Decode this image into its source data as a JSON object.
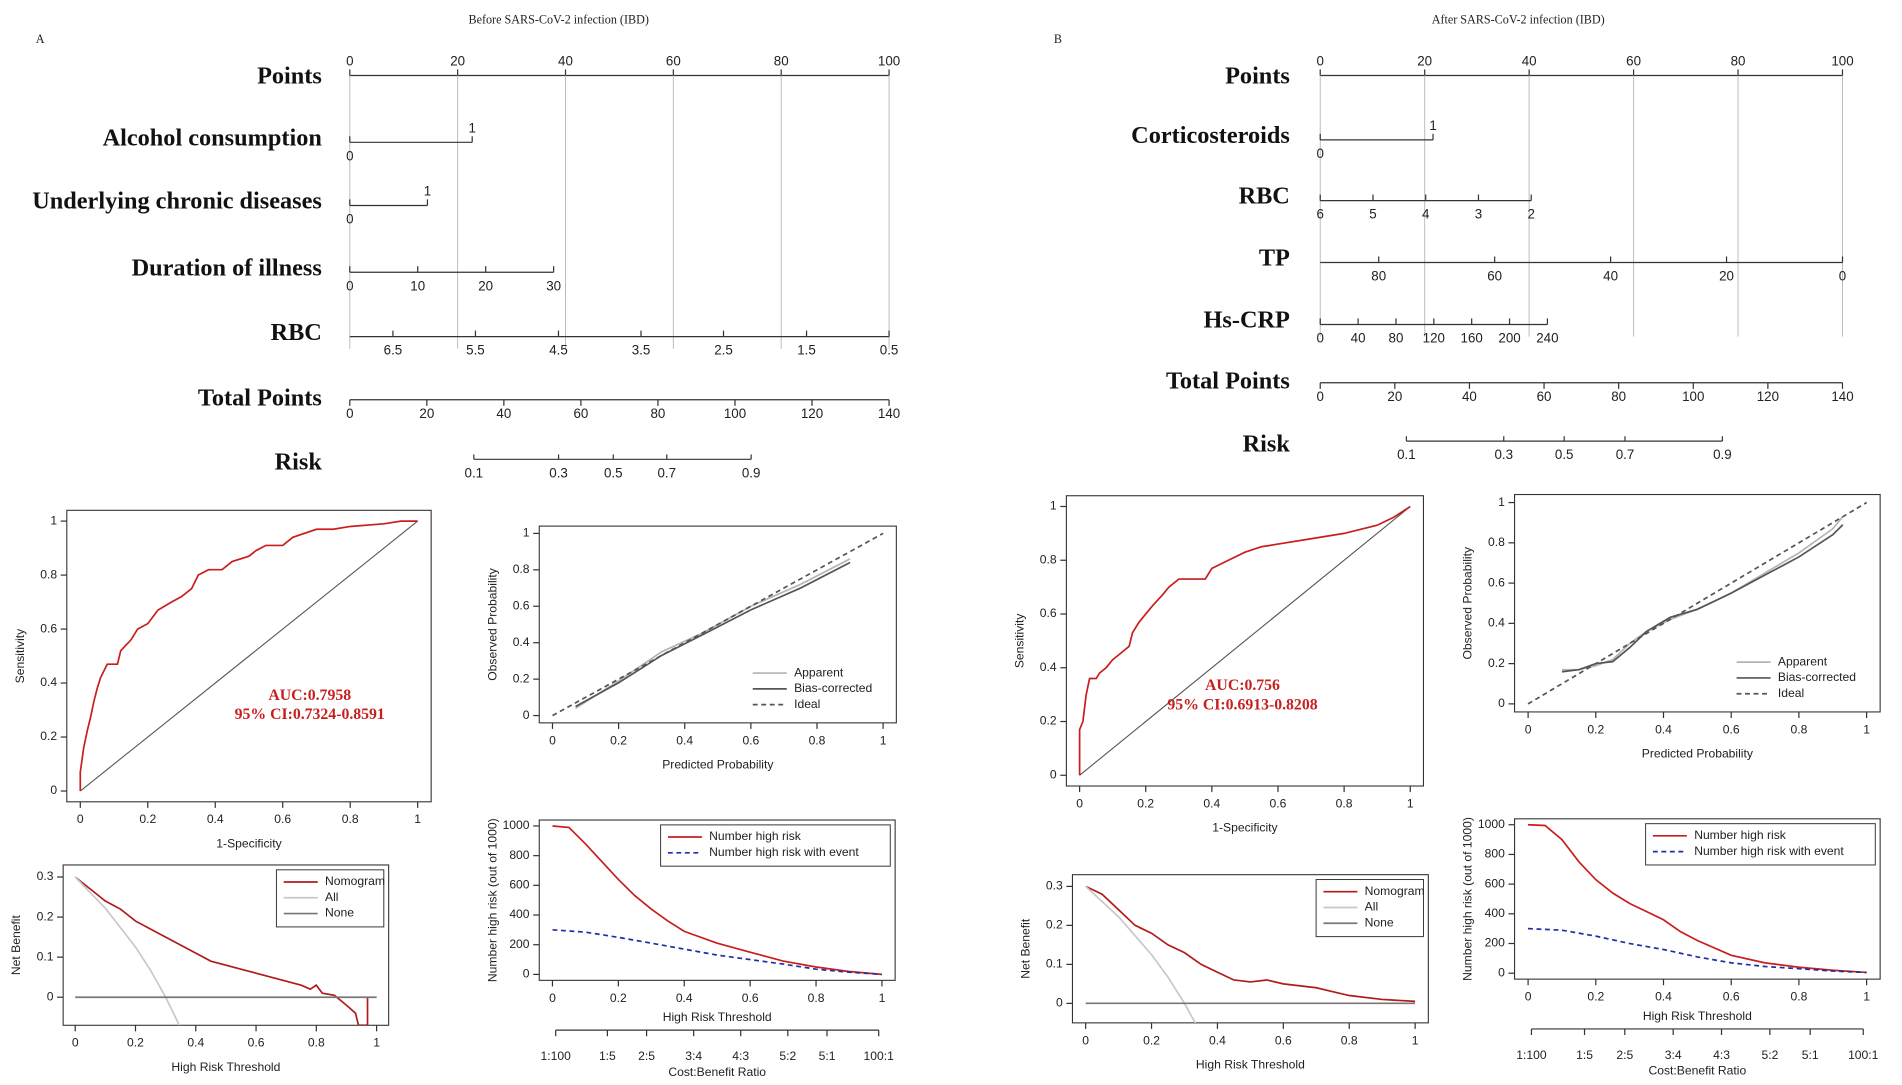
{
  "chart_data": [
    {
      "type": "nomogram",
      "panel": "A",
      "title": "Before SARS-CoV-2 infection (IBD)",
      "points": {
        "label": "Points",
        "xlim": [
          0,
          100
        ],
        "xticks": [
          0,
          20,
          40,
          60,
          80,
          100
        ]
      },
      "variables": [
        {
          "name": "Alcohol consumption",
          "levels": [
            0,
            1
          ],
          "points": [
            0,
            22.7
          ]
        },
        {
          "name": "Underlying chronic diseases",
          "levels": [
            0,
            1
          ],
          "points": [
            0,
            14.4
          ]
        },
        {
          "name": "Duration of illness",
          "levels": [
            0,
            10,
            20,
            30
          ],
          "points": [
            0,
            12.6,
            25.2,
            37.8
          ]
        },
        {
          "name": "RBC",
          "levels": [
            6.5,
            5.5,
            4.5,
            3.5,
            2.5,
            1.5,
            0.5
          ],
          "points": [
            8,
            23.3,
            38.7,
            54,
            69.3,
            84.7,
            100
          ],
          "axis_points": [
            0,
            100
          ]
        }
      ],
      "total_points": {
        "label": "Total Points",
        "xlim": [
          0,
          140
        ],
        "xticks": [
          0,
          20,
          40,
          60,
          80,
          100,
          120,
          140
        ]
      },
      "risk": {
        "label": "Risk",
        "values": [
          0.1,
          0.3,
          0.5,
          0.7,
          0.9
        ],
        "points": [
          32.2,
          54.2,
          68.4,
          82.3,
          104.2
        ]
      }
    },
    {
      "type": "line",
      "xlabel": "1-Specificity",
      "ylabel": "Sensitivity",
      "xlim": [
        -0.04,
        1.04
      ],
      "ylim": [
        -0.04,
        1.04
      ],
      "xticks": [
        0,
        0.2,
        0.4,
        0.6,
        0.8,
        1
      ],
      "yticks": [
        0,
        0.2,
        0.4,
        0.6,
        0.8,
        1
      ],
      "diagonal": true,
      "annotations": [
        "AUC:0.7958",
        "95% CI:0.7324-0.8591"
      ],
      "annotation_color": "#c81e1e",
      "series": [
        {
          "color": "#c81e1e",
          "x": [
            0,
            0,
            0.01,
            0.02,
            0.03,
            0.04,
            0.05,
            0.06,
            0.08,
            0.11,
            0.12,
            0.15,
            0.17,
            0.2,
            0.23,
            0.27,
            0.3,
            0.33,
            0.35,
            0.38,
            0.42,
            0.45,
            0.5,
            0.52,
            0.55,
            0.6,
            0.63,
            0.7,
            0.75,
            0.8,
            0.9,
            0.95,
            1
          ],
          "values": [
            0,
            0.07,
            0.16,
            0.22,
            0.27,
            0.33,
            0.38,
            0.42,
            0.47,
            0.47,
            0.52,
            0.56,
            0.6,
            0.62,
            0.67,
            0.7,
            0.72,
            0.75,
            0.8,
            0.82,
            0.82,
            0.85,
            0.87,
            0.89,
            0.91,
            0.91,
            0.94,
            0.97,
            0.97,
            0.98,
            0.99,
            1,
            1
          ]
        }
      ]
    },
    {
      "type": "line",
      "xlabel": "Predicted Probability",
      "ylabel": "Observed Probability",
      "xlim": [
        -0.04,
        1.04
      ],
      "ylim": [
        -0.04,
        1.04
      ],
      "xticks": [
        0,
        0.2,
        0.4,
        0.6,
        0.8,
        1
      ],
      "yticks": [
        0,
        0.2,
        0.4,
        0.6,
        0.8,
        1
      ],
      "legend": "bottomright",
      "legend_frame": false,
      "series": [
        {
          "name": "Apparent",
          "color": "#b4b4b4",
          "x": [
            0.07,
            0.2,
            0.33,
            0.45,
            0.6,
            0.75,
            0.9
          ],
          "values": [
            0.04,
            0.19,
            0.35,
            0.45,
            0.6,
            0.72,
            0.86
          ]
        },
        {
          "name": "Bias-corrected",
          "color": "#555555",
          "x": [
            0.07,
            0.2,
            0.33,
            0.45,
            0.6,
            0.75,
            0.9
          ],
          "values": [
            0.05,
            0.18,
            0.33,
            0.44,
            0.58,
            0.7,
            0.84
          ]
        },
        {
          "name": "Ideal",
          "color": "#555555",
          "dash": true,
          "x": [
            0,
            1
          ],
          "values": [
            0,
            1
          ]
        }
      ]
    },
    {
      "type": "line",
      "xlabel": "High Risk Threshold",
      "ylabel": "Net Benefit",
      "xlim": [
        -0.04,
        1.04
      ],
      "ylim": [
        -0.07,
        0.33
      ],
      "xticks": [
        0,
        0.2,
        0.4,
        0.6,
        0.8,
        1
      ],
      "yticks": [
        0,
        0.1,
        0.2,
        0.3
      ],
      "legend": "topright",
      "legend_frame": true,
      "series": [
        {
          "name": "Nomogram",
          "color": "#b01c1c",
          "x": [
            0,
            0.05,
            0.1,
            0.15,
            0.2,
            0.25,
            0.3,
            0.35,
            0.4,
            0.45,
            0.5,
            0.55,
            0.6,
            0.65,
            0.7,
            0.75,
            0.78,
            0.8,
            0.82,
            0.86,
            0.9,
            0.93,
            0.94,
            0.97,
            0.97
          ],
          "values": [
            0.3,
            0.27,
            0.24,
            0.22,
            0.19,
            0.17,
            0.15,
            0.13,
            0.11,
            0.09,
            0.08,
            0.07,
            0.06,
            0.05,
            0.04,
            0.03,
            0.02,
            0.03,
            0.01,
            0.005,
            -0.02,
            -0.04,
            -0.07,
            -0.07,
            0
          ]
        },
        {
          "name": "All",
          "color": "#c8c8c8",
          "x": [
            0,
            0.1,
            0.2,
            0.25,
            0.3,
            0.35
          ],
          "values": [
            0.3,
            0.222,
            0.125,
            0.067,
            0,
            -0.077
          ]
        },
        {
          "name": "None",
          "color": "#777777",
          "x": [
            0,
            1
          ],
          "values": [
            0,
            0
          ]
        }
      ]
    },
    {
      "type": "line",
      "xlabel": "High Risk Threshold",
      "ylabel": "Number high risk (out of 1000)",
      "xlim": [
        -0.04,
        1.04
      ],
      "ylim": [
        -40,
        1040
      ],
      "xticks": [
        0,
        0.2,
        0.4,
        0.6,
        0.8,
        1
      ],
      "yticks": [
        0,
        200,
        400,
        600,
        800,
        1000
      ],
      "x2label": "Cost:Benefit Ratio",
      "x2ticks": [
        {
          "value": 0.0099,
          "label": "1:100"
        },
        {
          "value": 0.1667,
          "label": "1:5"
        },
        {
          "value": 0.2857,
          "label": "2:5"
        },
        {
          "value": 0.4286,
          "label": "3:4"
        },
        {
          "value": 0.5714,
          "label": "4:3"
        },
        {
          "value": 0.7143,
          "label": "5:2"
        },
        {
          "value": 0.8333,
          "label": "5:1"
        },
        {
          "value": 0.9901,
          "label": "100:1"
        }
      ],
      "legend": "topright",
      "legend_frame": true,
      "series": [
        {
          "name": "Number high risk",
          "color": "#c81e1e",
          "x": [
            0,
            0.05,
            0.1,
            0.15,
            0.2,
            0.25,
            0.3,
            0.35,
            0.4,
            0.5,
            0.6,
            0.7,
            0.8,
            0.9,
            1
          ],
          "values": [
            1000,
            990,
            880,
            760,
            640,
            530,
            440,
            360,
            290,
            210,
            150,
            90,
            50,
            20,
            0
          ]
        },
        {
          "name": "Number high risk with event",
          "color": "#1f2fa8",
          "dash": true,
          "x": [
            0,
            0.1,
            0.2,
            0.3,
            0.4,
            0.5,
            0.6,
            0.7,
            0.8,
            0.9,
            1
          ],
          "values": [
            300,
            285,
            250,
            210,
            170,
            130,
            100,
            70,
            35,
            15,
            0
          ]
        }
      ]
    },
    {
      "type": "nomogram",
      "panel": "B",
      "title": "After SARS-CoV-2 infection (IBD)",
      "points": {
        "label": "Points",
        "xlim": [
          0,
          100
        ],
        "xticks": [
          0,
          20,
          40,
          60,
          80,
          100
        ]
      },
      "variables": [
        {
          "name": "Corticosteroids",
          "levels": [
            0,
            1
          ],
          "points": [
            0,
            21.6
          ]
        },
        {
          "name": "RBC",
          "levels": [
            6,
            5,
            4,
            3,
            2
          ],
          "points": [
            0,
            10.1,
            20.2,
            30.3,
            40.4
          ]
        },
        {
          "name": "TP",
          "levels": [
            80,
            60,
            40,
            20,
            0
          ],
          "points": [
            11.2,
            33.4,
            55.6,
            77.8,
            100
          ],
          "axis_points": [
            0,
            100
          ]
        },
        {
          "name": "Hs-CRP",
          "levels": [
            0,
            40,
            80,
            120,
            160,
            200,
            240
          ],
          "points": [
            0,
            7.25,
            14.5,
            21.75,
            29,
            36.25,
            43.5
          ]
        }
      ],
      "total_points": {
        "label": "Total Points",
        "xlim": [
          0,
          140
        ],
        "xticks": [
          0,
          20,
          40,
          60,
          80,
          100,
          120,
          140
        ]
      },
      "risk": {
        "label": "Risk",
        "values": [
          0.1,
          0.3,
          0.5,
          0.7,
          0.9
        ],
        "points": [
          23.1,
          49.2,
          65.4,
          81.7,
          107.8
        ]
      }
    },
    {
      "type": "line",
      "xlabel": "1-Specificity",
      "ylabel": "Sensitivity",
      "xlim": [
        -0.04,
        1.04
      ],
      "ylim": [
        -0.04,
        1.04
      ],
      "xticks": [
        0,
        0.2,
        0.4,
        0.6,
        0.8,
        1
      ],
      "yticks": [
        0,
        0.2,
        0.4,
        0.6,
        0.8,
        1
      ],
      "diagonal": true,
      "annotations": [
        "AUC:0.756",
        "95% CI:0.6913-0.8208"
      ],
      "annotation_color": "#c81e1e",
      "series": [
        {
          "color": "#c81e1e",
          "x": [
            0,
            0,
            0.01,
            0.02,
            0.03,
            0.05,
            0.06,
            0.08,
            0.1,
            0.12,
            0.15,
            0.16,
            0.18,
            0.2,
            0.22,
            0.25,
            0.27,
            0.3,
            0.38,
            0.4,
            0.45,
            0.5,
            0.55,
            0.6,
            0.7,
            0.8,
            0.9,
            0.95,
            1
          ],
          "values": [
            0,
            0.17,
            0.2,
            0.3,
            0.36,
            0.36,
            0.38,
            0.4,
            0.43,
            0.45,
            0.48,
            0.53,
            0.57,
            0.6,
            0.63,
            0.67,
            0.7,
            0.73,
            0.73,
            0.77,
            0.8,
            0.83,
            0.85,
            0.86,
            0.88,
            0.9,
            0.93,
            0.96,
            1
          ]
        }
      ]
    },
    {
      "type": "line",
      "xlabel": "Predicted Probability",
      "ylabel": "Observed Probability",
      "xlim": [
        -0.04,
        1.04
      ],
      "ylim": [
        -0.04,
        1.04
      ],
      "xticks": [
        0,
        0.2,
        0.4,
        0.6,
        0.8,
        1
      ],
      "yticks": [
        0,
        0.2,
        0.4,
        0.6,
        0.8,
        1
      ],
      "legend": "bottomright",
      "legend_frame": false,
      "series": [
        {
          "name": "Apparent",
          "color": "#b4b4b4",
          "x": [
            0.1,
            0.15,
            0.2,
            0.25,
            0.3,
            0.35,
            0.42,
            0.5,
            0.6,
            0.7,
            0.8,
            0.9,
            0.93
          ],
          "values": [
            0.17,
            0.17,
            0.19,
            0.22,
            0.3,
            0.36,
            0.42,
            0.47,
            0.55,
            0.65,
            0.75,
            0.87,
            0.93
          ]
        },
        {
          "name": "Bias-corrected",
          "color": "#555555",
          "x": [
            0.1,
            0.15,
            0.2,
            0.25,
            0.3,
            0.35,
            0.42,
            0.5,
            0.6,
            0.7,
            0.8,
            0.9,
            0.93
          ],
          "values": [
            0.16,
            0.17,
            0.2,
            0.21,
            0.28,
            0.36,
            0.43,
            0.47,
            0.55,
            0.64,
            0.73,
            0.84,
            0.89
          ]
        },
        {
          "name": "Ideal",
          "color": "#555555",
          "dash": true,
          "x": [
            0,
            1
          ],
          "values": [
            0,
            1
          ]
        }
      ]
    },
    {
      "type": "line",
      "xlabel": "High Risk Threshold",
      "ylabel": "Net Benefit",
      "xlim": [
        -0.04,
        1.04
      ],
      "ylim": [
        -0.05,
        0.33
      ],
      "xticks": [
        0,
        0.2,
        0.4,
        0.6,
        0.8,
        1
      ],
      "yticks": [
        0,
        0.1,
        0.2,
        0.3
      ],
      "legend": "topright",
      "legend_frame": true,
      "series": [
        {
          "name": "Nomogram",
          "color": "#b01c1c",
          "x": [
            0,
            0.05,
            0.1,
            0.15,
            0.2,
            0.25,
            0.3,
            0.35,
            0.4,
            0.45,
            0.5,
            0.55,
            0.6,
            0.7,
            0.75,
            0.8,
            0.9,
            1
          ],
          "values": [
            0.3,
            0.28,
            0.24,
            0.2,
            0.18,
            0.15,
            0.13,
            0.1,
            0.08,
            0.06,
            0.055,
            0.06,
            0.05,
            0.04,
            0.03,
            0.02,
            0.01,
            0.005
          ]
        },
        {
          "name": "All",
          "color": "#c8c8c8",
          "x": [
            0,
            0.1,
            0.2,
            0.25,
            0.3,
            0.35
          ],
          "values": [
            0.3,
            0.222,
            0.125,
            0.067,
            0,
            -0.077
          ]
        },
        {
          "name": "None",
          "color": "#777777",
          "x": [
            0,
            1
          ],
          "values": [
            0,
            0
          ]
        }
      ]
    },
    {
      "type": "line",
      "xlabel": "High Risk Threshold",
      "ylabel": "Number high risk (out of 1000)",
      "xlim": [
        -0.04,
        1.04
      ],
      "ylim": [
        -40,
        1040
      ],
      "xticks": [
        0,
        0.2,
        0.4,
        0.6,
        0.8,
        1
      ],
      "yticks": [
        0,
        200,
        400,
        600,
        800,
        1000
      ],
      "x2label": "Cost:Benefit Ratio",
      "x2ticks": [
        {
          "value": 0.0099,
          "label": "1:100"
        },
        {
          "value": 0.1667,
          "label": "1:5"
        },
        {
          "value": 0.2857,
          "label": "2:5"
        },
        {
          "value": 0.4286,
          "label": "3:4"
        },
        {
          "value": 0.5714,
          "label": "4:3"
        },
        {
          "value": 0.7143,
          "label": "5:2"
        },
        {
          "value": 0.8333,
          "label": "5:1"
        },
        {
          "value": 0.9901,
          "label": "100:1"
        }
      ],
      "legend": "topright",
      "legend_frame": true,
      "series": [
        {
          "name": "Number high risk",
          "color": "#c81e1e",
          "x": [
            0,
            0.05,
            0.1,
            0.15,
            0.2,
            0.25,
            0.3,
            0.4,
            0.45,
            0.5,
            0.6,
            0.7,
            0.8,
            0.9,
            1
          ],
          "values": [
            1000,
            995,
            900,
            750,
            630,
            540,
            470,
            360,
            280,
            220,
            120,
            70,
            40,
            20,
            5
          ]
        },
        {
          "name": "Number high risk with event",
          "color": "#1f2fa8",
          "dash": true,
          "x": [
            0,
            0.1,
            0.2,
            0.3,
            0.4,
            0.5,
            0.6,
            0.7,
            0.8,
            0.9,
            1
          ],
          "values": [
            300,
            290,
            250,
            200,
            160,
            110,
            70,
            45,
            30,
            15,
            5
          ]
        }
      ]
    }
  ]
}
